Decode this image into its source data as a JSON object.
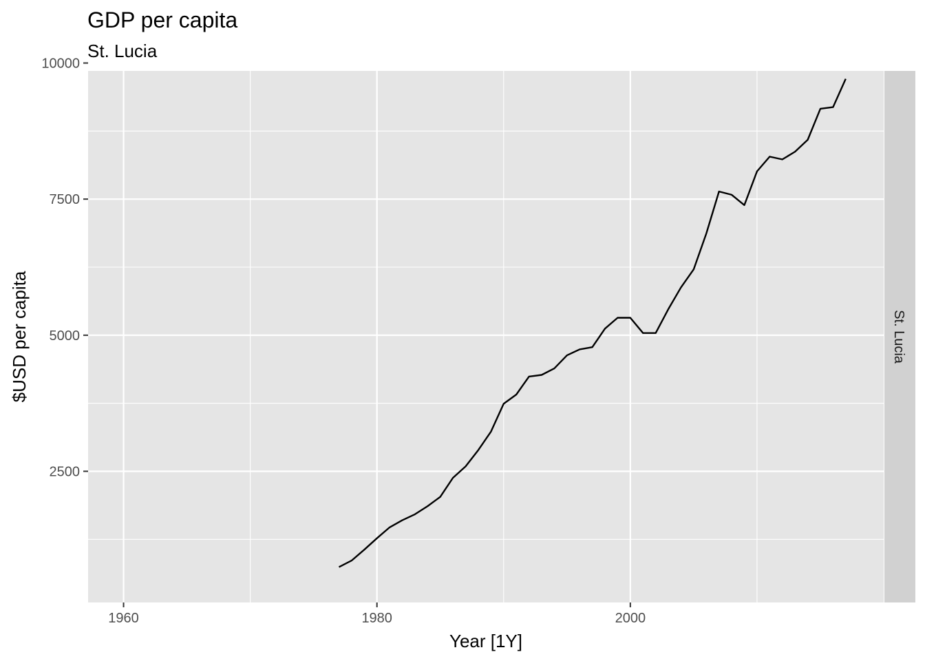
{
  "chart_data": {
    "type": "line",
    "title": "GDP per capita",
    "subtitle": "St. Lucia",
    "xlabel": "Year [1Y]",
    "ylabel": "$USD per capita",
    "facet_label": "St. Lucia",
    "xlim": [
      1957.2,
      2020.0
    ],
    "ylim": [
      90,
      9855
    ],
    "x_ticks": [
      1960,
      1980,
      2000
    ],
    "x_tick_labels": [
      "1960",
      "1980",
      "2000"
    ],
    "y_ticks": [
      2500,
      5000,
      7500,
      10000
    ],
    "y_tick_labels": [
      "2500",
      "5000",
      "7500",
      "10000"
    ],
    "x_minor_ticks": [
      1970,
      1990,
      2010
    ],
    "y_minor_ticks": [
      1250,
      3750,
      6250,
      8750
    ],
    "grid": true,
    "colors": {
      "panel_background": "#e5e5e5",
      "strip_background": "#d1d1d1",
      "grid": "#ffffff",
      "line": "#000000"
    },
    "series": [
      {
        "x": [
          1977,
          1978,
          1979,
          1980,
          1981,
          1982,
          1983,
          1984,
          1985,
          1986,
          1987,
          1988,
          1989,
          1990,
          1991,
          1992,
          1993,
          1994,
          1995,
          1996,
          1997,
          1998,
          1999,
          2000,
          2001,
          2002,
          2003,
          2004,
          2005,
          2006,
          2007,
          2008,
          2009,
          2010,
          2011,
          2012,
          2013,
          2014,
          2015,
          2016,
          2017
        ],
        "values": [
          740,
          860,
          1060,
          1270,
          1470,
          1600,
          1710,
          1860,
          2030,
          2380,
          2590,
          2890,
          3230,
          3740,
          3910,
          4240,
          4270,
          4390,
          4630,
          4740,
          4780,
          5120,
          5320,
          5320,
          5040,
          5040,
          5480,
          5880,
          6210,
          6870,
          7640,
          7580,
          7390,
          8010,
          8280,
          8230,
          8370,
          8590,
          9160,
          9190,
          9710
        ]
      }
    ]
  }
}
